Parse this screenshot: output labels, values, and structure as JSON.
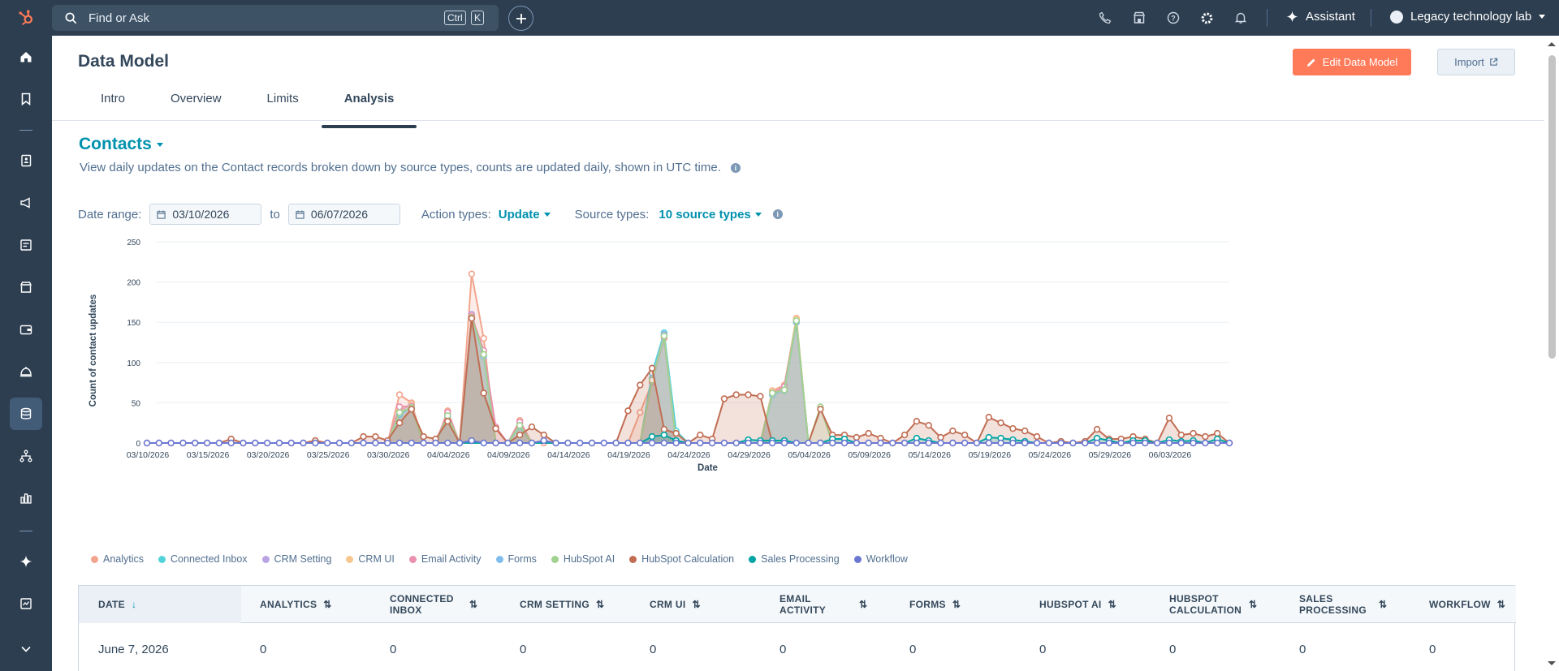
{
  "topbar": {
    "search_placeholder": "Find or Ask",
    "shortcut_ctrl": "Ctrl",
    "shortcut_k": "K",
    "assistant_label": "Assistant",
    "account_name": "Legacy technology lab"
  },
  "sidebar": {
    "items": [
      "home-icon",
      "bookmark-icon",
      "contacts-icon",
      "marketing-icon",
      "content-icon",
      "commerce-icon",
      "wallet-icon",
      "service-icon",
      "data-management-icon",
      "automation-icon",
      "reporting-icon",
      "breeze-icon",
      "dashboard-icon"
    ]
  },
  "page": {
    "title": "Data Model",
    "edit_button": "Edit Data Model",
    "import_button": "Import",
    "tabs": [
      "Intro",
      "Overview",
      "Limits",
      "Analysis"
    ],
    "active_tab": "Analysis"
  },
  "section": {
    "object": "Contacts",
    "description": "View daily updates on the Contact records broken down by source types, counts are updated daily, shown in UTC time."
  },
  "filters": {
    "date_range_label": "Date range:",
    "start_date": "03/10/2026",
    "to_label": "to",
    "end_date": "06/07/2026",
    "action_types_label": "Action types:",
    "action_type_value": "Update",
    "source_types_label": "Source types:",
    "source_types_value": "10 source types"
  },
  "chart_data": {
    "type": "area",
    "xlabel": "Date",
    "ylabel": "Count of contact updates",
    "ylim": [
      0,
      250
    ],
    "yticks": [
      0,
      50,
      100,
      150,
      200,
      250
    ],
    "x_tick_labels": [
      "03/10/2026",
      "03/15/2026",
      "03/20/2026",
      "03/25/2026",
      "03/30/2026",
      "04/04/2026",
      "04/09/2026",
      "04/14/2026",
      "04/19/2026",
      "04/24/2026",
      "04/29/2026",
      "05/04/2026",
      "05/09/2026",
      "05/14/2026",
      "05/19/2026",
      "05/24/2026",
      "05/29/2026",
      "06/03/2026"
    ],
    "start_date": "2026-03-10",
    "num_days": 90,
    "legend_position": "bottom",
    "series": [
      {
        "name": "Analytics",
        "color": "#f2a58e",
        "points": [
          [
            21,
            60
          ],
          [
            22,
            50
          ],
          [
            25,
            40
          ],
          [
            27,
            210
          ],
          [
            28,
            130
          ],
          [
            31,
            28
          ],
          [
            41,
            38
          ],
          [
            42,
            75
          ],
          [
            43,
            130
          ],
          [
            52,
            65
          ],
          [
            53,
            72
          ],
          [
            54,
            155
          ],
          [
            55,
            0
          ]
        ]
      },
      {
        "name": "Connected Inbox",
        "color": "#51d3d9",
        "points": [
          [
            21,
            35
          ],
          [
            22,
            45
          ],
          [
            25,
            33
          ],
          [
            27,
            155
          ],
          [
            28,
            110
          ],
          [
            31,
            20
          ],
          [
            42,
            87
          ],
          [
            43,
            137
          ],
          [
            44,
            15
          ],
          [
            52,
            62
          ],
          [
            53,
            65
          ],
          [
            54,
            150
          ]
        ]
      },
      {
        "name": "CRM Setting",
        "color": "#b9a3e3",
        "points": [
          [
            21,
            40
          ],
          [
            22,
            48
          ],
          [
            25,
            35
          ],
          [
            27,
            160
          ],
          [
            28,
            110
          ],
          [
            31,
            25
          ],
          [
            42,
            80
          ],
          [
            43,
            135
          ],
          [
            52,
            60
          ],
          [
            53,
            70
          ],
          [
            54,
            152
          ]
        ]
      },
      {
        "name": "CRM UI",
        "color": "#f5c78e",
        "points": [
          [
            21,
            42
          ],
          [
            22,
            48
          ],
          [
            25,
            36
          ],
          [
            27,
            158
          ],
          [
            28,
            112
          ],
          [
            31,
            24
          ],
          [
            42,
            78
          ],
          [
            43,
            133
          ],
          [
            52,
            64
          ],
          [
            53,
            68
          ],
          [
            54,
            154
          ]
        ]
      },
      {
        "name": "Email Activity",
        "color": "#ea90b1",
        "points": [
          [
            21,
            45
          ],
          [
            22,
            46
          ],
          [
            25,
            38
          ],
          [
            27,
            158
          ],
          [
            28,
            115
          ],
          [
            29,
            20
          ],
          [
            31,
            26
          ],
          [
            42,
            76
          ],
          [
            43,
            132
          ],
          [
            52,
            62
          ],
          [
            53,
            70
          ],
          [
            54,
            150
          ]
        ]
      },
      {
        "name": "Forms",
        "color": "#7fbdef",
        "points": [
          [
            21,
            36
          ],
          [
            22,
            44
          ],
          [
            25,
            34
          ],
          [
            27,
            155
          ],
          [
            28,
            108
          ],
          [
            31,
            22
          ],
          [
            42,
            80
          ],
          [
            43,
            134
          ],
          [
            52,
            60
          ],
          [
            53,
            66
          ],
          [
            54,
            150
          ]
        ]
      },
      {
        "name": "HubSpot AI",
        "color": "#a2d28f",
        "points": [
          [
            21,
            38
          ],
          [
            22,
            44
          ],
          [
            25,
            34
          ],
          [
            27,
            156
          ],
          [
            28,
            110
          ],
          [
            31,
            22
          ],
          [
            42,
            78
          ],
          [
            43,
            133
          ],
          [
            52,
            62
          ],
          [
            53,
            66
          ],
          [
            54,
            152
          ],
          [
            56,
            45
          ]
        ]
      },
      {
        "name": "HubSpot Calculation",
        "color": "#c16d52",
        "points": [
          [
            7,
            5
          ],
          [
            14,
            3
          ],
          [
            18,
            8
          ],
          [
            19,
            8
          ],
          [
            20,
            3
          ],
          [
            21,
            25
          ],
          [
            22,
            42
          ],
          [
            23,
            8
          ],
          [
            24,
            5
          ],
          [
            25,
            27
          ],
          [
            27,
            155
          ],
          [
            28,
            62
          ],
          [
            29,
            18
          ],
          [
            31,
            10
          ],
          [
            32,
            20
          ],
          [
            33,
            10
          ],
          [
            40,
            40
          ],
          [
            41,
            72
          ],
          [
            42,
            93
          ],
          [
            43,
            17
          ],
          [
            44,
            12
          ],
          [
            46,
            10
          ],
          [
            47,
            5
          ],
          [
            48,
            55
          ],
          [
            49,
            60
          ],
          [
            50,
            60
          ],
          [
            51,
            58
          ],
          [
            53,
            0
          ],
          [
            56,
            42
          ],
          [
            57,
            10
          ],
          [
            58,
            10
          ],
          [
            59,
            7
          ],
          [
            60,
            12
          ],
          [
            61,
            6
          ],
          [
            63,
            10
          ],
          [
            64,
            27
          ],
          [
            65,
            22
          ],
          [
            66,
            7
          ],
          [
            67,
            15
          ],
          [
            68,
            10
          ],
          [
            70,
            32
          ],
          [
            71,
            25
          ],
          [
            72,
            18
          ],
          [
            73,
            15
          ],
          [
            74,
            8
          ],
          [
            76,
            2
          ],
          [
            78,
            2
          ],
          [
            79,
            17
          ],
          [
            80,
            5
          ],
          [
            81,
            5
          ],
          [
            82,
            8
          ],
          [
            83,
            5
          ],
          [
            85,
            31
          ],
          [
            86,
            10
          ],
          [
            87,
            12
          ],
          [
            88,
            8
          ],
          [
            89,
            12
          ],
          [
            90,
            0
          ]
        ]
      },
      {
        "name": "Sales Processing",
        "color": "#00a4a4",
        "points": [
          [
            42,
            8
          ],
          [
            43,
            10
          ],
          [
            44,
            3
          ],
          [
            50,
            4
          ],
          [
            51,
            3
          ],
          [
            52,
            3
          ],
          [
            53,
            3
          ],
          [
            57,
            5
          ],
          [
            58,
            5
          ],
          [
            64,
            6
          ],
          [
            65,
            3
          ],
          [
            70,
            7
          ],
          [
            71,
            6
          ],
          [
            72,
            4
          ],
          [
            73,
            2
          ],
          [
            79,
            6
          ],
          [
            80,
            3
          ],
          [
            82,
            3
          ],
          [
            83,
            3
          ],
          [
            85,
            4
          ],
          [
            86,
            2
          ],
          [
            87,
            3
          ],
          [
            89,
            5
          ]
        ]
      },
      {
        "name": "Workflow",
        "color": "#6a78d1",
        "points": [
          [
            27,
            3
          ],
          [
            33,
            3
          ]
        ]
      }
    ]
  },
  "table": {
    "columns": [
      {
        "label": "DATE",
        "sort": "↓"
      },
      {
        "label": "ANALYTICS",
        "sort": "⇅"
      },
      {
        "label": "CONNECTED INBOX",
        "sort": "⇅"
      },
      {
        "label": "CRM SETTING",
        "sort": "⇅"
      },
      {
        "label": "CRM UI",
        "sort": "⇅"
      },
      {
        "label": "EMAIL ACTIVITY",
        "sort": "⇅"
      },
      {
        "label": "FORMS",
        "sort": "⇅"
      },
      {
        "label": "HUBSPOT AI",
        "sort": "⇅"
      },
      {
        "label": "HUBSPOT CALCULATION",
        "sort": "⇅"
      },
      {
        "label": "SALES PROCESSING",
        "sort": "⇅"
      },
      {
        "label": "WORKFLOW",
        "sort": "⇅"
      }
    ],
    "rows": [
      [
        "June 7, 2026",
        "0",
        "0",
        "0",
        "0",
        "0",
        "0",
        "0",
        "0",
        "0",
        "0"
      ]
    ]
  }
}
